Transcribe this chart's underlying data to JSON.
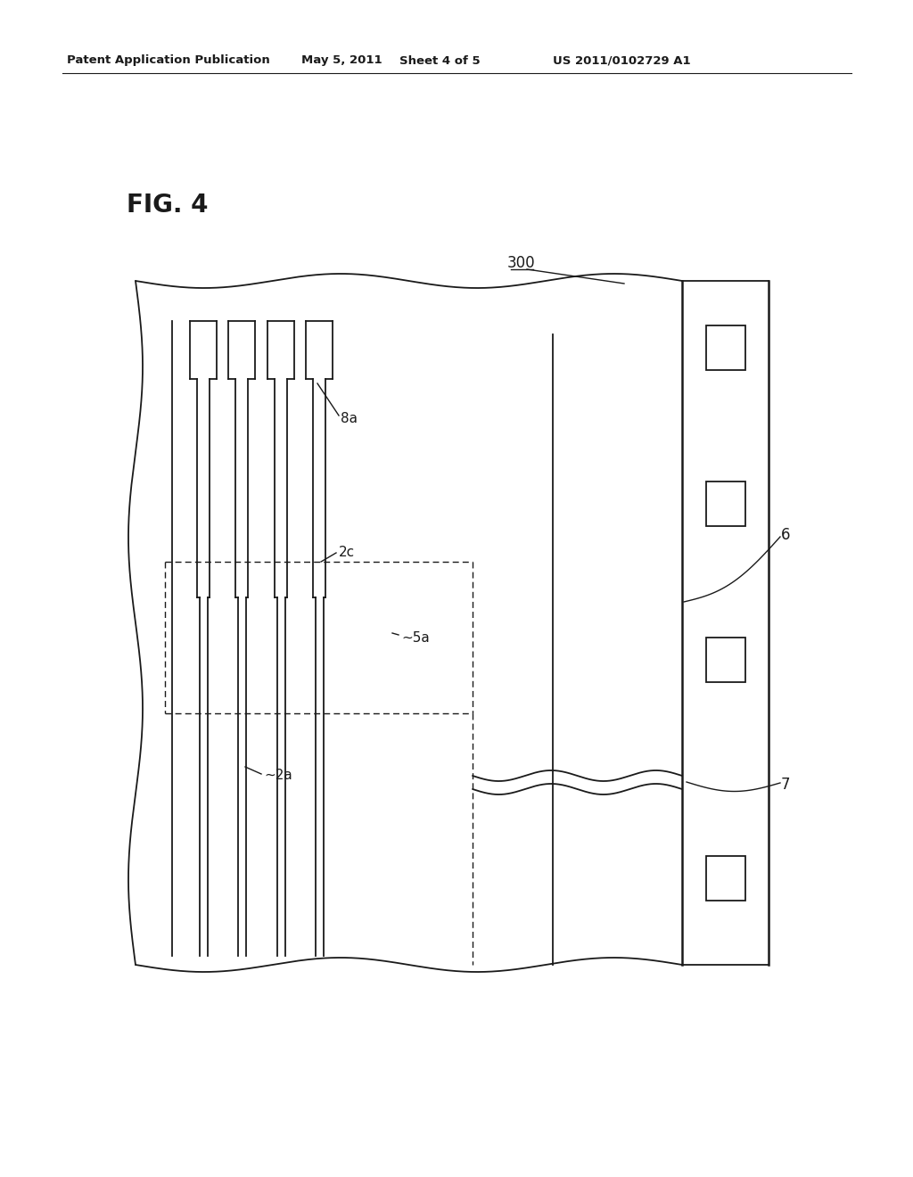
{
  "bg_color": "#ffffff",
  "line_color": "#1a1a1a",
  "header_text": "Patent Application Publication",
  "header_date": "May 5, 2011",
  "header_sheet": "Sheet 4 of 5",
  "header_patent": "US 2011/0102729 A1",
  "fig_label": "FIG. 4",
  "label_300": "300",
  "label_6": "6",
  "label_7": "7",
  "label_8a": "8a",
  "label_2c": "2c",
  "label_5a": "~5a",
  "label_2a": "~2a"
}
